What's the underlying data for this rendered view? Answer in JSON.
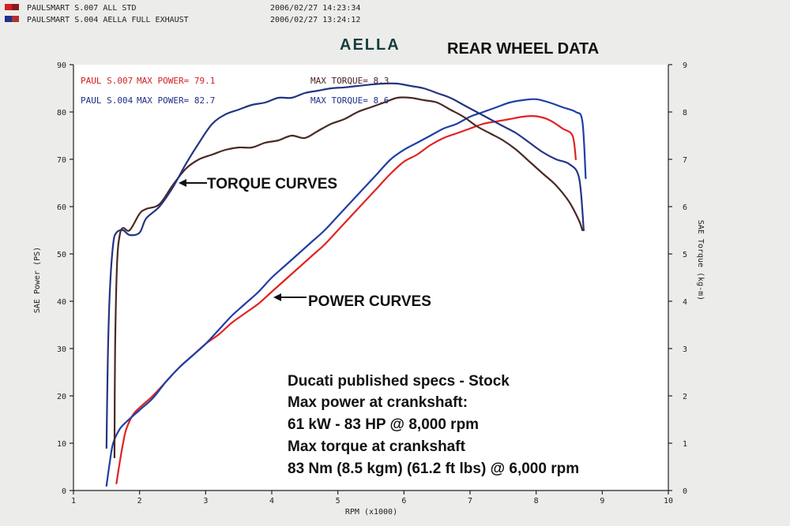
{
  "header": {
    "rows": [
      {
        "label": "PAULSMART S.007 ALL STD",
        "timestamp": "2006/02/27 14:23:34",
        "color": "#d42020"
      },
      {
        "label": "PAULSMART S.004 AELLA FULL EXHAUST",
        "timestamp": "2006/02/27 13:24:12",
        "color": "#20308a"
      }
    ]
  },
  "brand": "AELLA",
  "colors": {
    "red_series": "#e02323",
    "blue_series": "#1f3fa6",
    "torque_std": "#4a2a24",
    "torque_aella": "#243580",
    "header_blue": "#20308a",
    "annotation_text": "#111111",
    "plot_bg": "#ffffff"
  },
  "stats": {
    "red": {
      "run": "PAUL S.007",
      "max_power": "MAX POWER= 79.1",
      "max_torque": "MAX TORQUE= 8.3"
    },
    "blue": {
      "run": "PAUL S.004",
      "max_power": "MAX POWER= 82.7",
      "max_torque": "MAX TORQUE= 8.6"
    }
  },
  "annotations": {
    "torque": "TORQUE CURVES",
    "power": "POWER CURVES"
  },
  "specs": [
    "Ducati published specs - Stock",
    "Max power at crankshaft:",
    "61 kW - 83 HP @ 8,000 rpm",
    "Max torque at crankshaft",
    "83 Nm (8.5 kgm) (61.2 ft lbs) @ 6,000 rpm"
  ],
  "chart_data": {
    "type": "line",
    "title": "REAR WHEEL DATA",
    "xlabel": "RPM (x1000)",
    "ylabel": "SAE Power (PS)",
    "y2label": "SAE Torque (kg-m)",
    "xlim": [
      1,
      10
    ],
    "ylim": [
      0,
      90
    ],
    "y2lim": [
      0,
      9
    ],
    "x_ticks": [
      "1",
      "2",
      "3",
      "4",
      "5",
      "6",
      "7",
      "8",
      "9",
      "10"
    ],
    "y_ticks": [
      "0",
      "10",
      "20",
      "30",
      "40",
      "50",
      "60",
      "70",
      "80",
      "90"
    ],
    "y2_ticks": [
      "0",
      "1",
      "2",
      "3",
      "4",
      "5",
      "6",
      "7",
      "8",
      "9"
    ],
    "grid": false,
    "series": [
      {
        "name": "PAULSMART S.007 ALL STD",
        "kind": "power",
        "axis": "left",
        "x": [
          1.65,
          1.7,
          1.75,
          1.8,
          1.9,
          2.0,
          2.2,
          2.4,
          2.6,
          2.8,
          3.0,
          3.2,
          3.4,
          3.6,
          3.8,
          4.0,
          4.2,
          4.4,
          4.6,
          4.8,
          5.0,
          5.2,
          5.4,
          5.6,
          5.8,
          6.0,
          6.2,
          6.4,
          6.6,
          6.8,
          7.0,
          7.2,
          7.4,
          7.6,
          7.8,
          8.0,
          8.2,
          8.4,
          8.55,
          8.6
        ],
        "y": [
          1.5,
          6,
          10,
          13,
          16,
          17.5,
          20,
          23,
          26,
          28.5,
          31,
          33,
          35.5,
          37.5,
          39.5,
          42,
          44.5,
          47,
          49.5,
          52,
          55,
          58,
          61,
          64,
          67,
          69.5,
          71,
          73,
          74.5,
          75.5,
          76.5,
          77.5,
          78,
          78.5,
          79,
          79.1,
          78.3,
          76.5,
          75,
          70
        ]
      },
      {
        "name": "PAULSMART S.004 AELLA FULL EXHAUST",
        "kind": "power",
        "axis": "left",
        "x": [
          1.5,
          1.55,
          1.6,
          1.7,
          1.8,
          2.0,
          2.2,
          2.4,
          2.6,
          2.8,
          3.0,
          3.2,
          3.4,
          3.6,
          3.8,
          4.0,
          4.2,
          4.4,
          4.6,
          4.8,
          5.0,
          5.2,
          5.4,
          5.6,
          5.8,
          6.0,
          6.2,
          6.4,
          6.6,
          6.8,
          7.0,
          7.2,
          7.4,
          7.6,
          7.8,
          8.0,
          8.2,
          8.4,
          8.6,
          8.7,
          8.75
        ],
        "y": [
          1,
          6,
          10,
          13,
          14.5,
          17,
          19.5,
          23,
          26,
          28.5,
          31,
          34,
          37,
          39.5,
          42,
          45,
          47.5,
          50,
          52.5,
          55,
          58,
          61,
          64,
          67,
          70,
          72,
          73.5,
          75,
          76.5,
          77.5,
          79,
          80,
          81,
          82,
          82.5,
          82.7,
          82,
          81,
          80,
          78,
          66
        ]
      },
      {
        "name": "PAULSMART S.007 ALL STD",
        "kind": "torque",
        "axis": "right",
        "x": [
          1.62,
          1.63,
          1.66,
          1.7,
          1.75,
          1.85,
          2.0,
          2.1,
          2.3,
          2.5,
          2.7,
          2.9,
          3.1,
          3.3,
          3.5,
          3.7,
          3.9,
          4.1,
          4.3,
          4.5,
          4.7,
          4.9,
          5.1,
          5.3,
          5.5,
          5.7,
          5.9,
          6.1,
          6.3,
          6.5,
          6.7,
          6.9,
          7.1,
          7.3,
          7.5,
          7.7,
          7.9,
          8.1,
          8.3,
          8.5,
          8.65,
          8.7
        ],
        "y": [
          0.7,
          3.0,
          4.8,
          5.4,
          5.55,
          5.5,
          5.85,
          5.95,
          6.05,
          6.45,
          6.8,
          7.0,
          7.1,
          7.2,
          7.25,
          7.25,
          7.35,
          7.4,
          7.5,
          7.45,
          7.6,
          7.75,
          7.85,
          8.0,
          8.1,
          8.2,
          8.3,
          8.3,
          8.25,
          8.2,
          8.05,
          7.9,
          7.7,
          7.55,
          7.4,
          7.2,
          6.95,
          6.7,
          6.45,
          6.1,
          5.7,
          5.5
        ]
      },
      {
        "name": "PAULSMART S.004 AELLA FULL EXHAUST",
        "kind": "torque",
        "axis": "right",
        "x": [
          1.5,
          1.52,
          1.55,
          1.6,
          1.65,
          1.75,
          1.85,
          2.0,
          2.1,
          2.3,
          2.5,
          2.7,
          2.9,
          3.1,
          3.3,
          3.5,
          3.7,
          3.9,
          4.1,
          4.3,
          4.5,
          4.7,
          4.9,
          5.1,
          5.3,
          5.5,
          5.7,
          5.9,
          6.1,
          6.3,
          6.5,
          6.7,
          6.9,
          7.1,
          7.3,
          7.5,
          7.7,
          7.9,
          8.1,
          8.3,
          8.5,
          8.65,
          8.72
        ],
        "y": [
          0.9,
          2.8,
          4.2,
          5.2,
          5.45,
          5.5,
          5.4,
          5.45,
          5.75,
          6.0,
          6.4,
          6.9,
          7.35,
          7.75,
          7.95,
          8.05,
          8.15,
          8.2,
          8.3,
          8.3,
          8.4,
          8.45,
          8.5,
          8.52,
          8.55,
          8.58,
          8.6,
          8.6,
          8.55,
          8.5,
          8.4,
          8.3,
          8.15,
          8.0,
          7.85,
          7.7,
          7.55,
          7.35,
          7.15,
          7.0,
          6.9,
          6.6,
          5.5
        ]
      }
    ]
  }
}
